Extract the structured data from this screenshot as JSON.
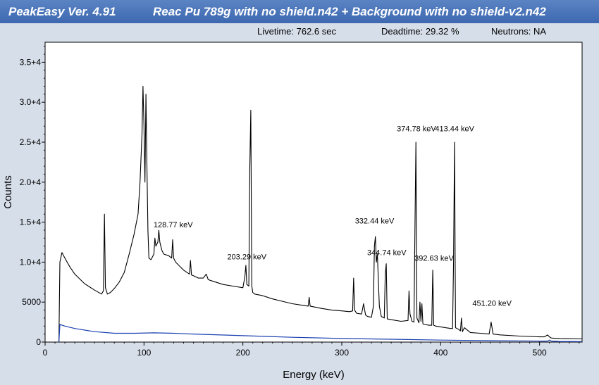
{
  "window": {
    "app_title": "PeakEasy Ver. 4.91",
    "file_title": "Reac Pu 789g with no shield.n42  +  Background with no shield-v2.n42"
  },
  "status": {
    "livetime": "Livetime: 762.6 sec",
    "deadtime": "Deadtime: 29.32 %",
    "neutrons": "Neutrons: NA"
  },
  "colors": {
    "plot_bg": "#ffffff",
    "spectrum": "#000000",
    "background_spectrum": "#1a3fb0",
    "window_bg": "#d6dee9",
    "titlebar": "#4a76ba"
  },
  "chart_data": {
    "type": "line",
    "title": "",
    "xlabel": "Energy (keV)",
    "ylabel": "Counts",
    "xlim": [
      0,
      543
    ],
    "ylim": [
      0,
      37500
    ],
    "x_ticks": [
      0,
      100,
      200,
      300,
      400,
      500
    ],
    "y_ticks": [
      {
        "value": 0,
        "label": "0"
      },
      {
        "value": 5000,
        "label": "5000"
      },
      {
        "value": 10000,
        "label": "1.0+4"
      },
      {
        "value": 15000,
        "label": "1.5+4"
      },
      {
        "value": 20000,
        "label": "2.0+4"
      },
      {
        "value": 25000,
        "label": "2.5+4"
      },
      {
        "value": 30000,
        "label": "3.0+4"
      },
      {
        "value": 35000,
        "label": "3.5+4"
      }
    ],
    "grid": false,
    "series": [
      {
        "role": "spectrum",
        "x": [
          14,
          15,
          17,
          20,
          25,
          30,
          40,
          50,
          57,
          59,
          60,
          61,
          63,
          66,
          70,
          75,
          80,
          85,
          90,
          94,
          96,
          98,
          99,
          100,
          101,
          102,
          103,
          104,
          105,
          107,
          110,
          111,
          112,
          114,
          115,
          116,
          118,
          120,
          125,
          128,
          129,
          130,
          132,
          140,
          146,
          147,
          148,
          150,
          155,
          160,
          163,
          165,
          170,
          180,
          190,
          200,
          202,
          203,
          204,
          206,
          207,
          208,
          209,
          210,
          212,
          220,
          230,
          240,
          250,
          260,
          266,
          267,
          268,
          280,
          290,
          300,
          308,
          311,
          312,
          313,
          315,
          320,
          322,
          324,
          326,
          330,
          332,
          333,
          334,
          335,
          336,
          338,
          340,
          343,
          344,
          345,
          346,
          350,
          360,
          367,
          368,
          369,
          371,
          373,
          374,
          375,
          376,
          378,
          379,
          380,
          381,
          382,
          383,
          384,
          388,
          391,
          392,
          393,
          395,
          400,
          410,
          412,
          413,
          414,
          415,
          418,
          420,
          421,
          422,
          424,
          430,
          440,
          449,
          451,
          453,
          460,
          480,
          500,
          505,
          508,
          510,
          512,
          520,
          543
        ],
        "y": [
          0,
          10000,
          11200,
          10500,
          9400,
          8500,
          7300,
          6500,
          6000,
          6400,
          16000,
          6800,
          6000,
          6200,
          6700,
          7500,
          8700,
          11000,
          13500,
          16000,
          20000,
          26000,
          32000,
          27000,
          20000,
          31000,
          22000,
          14000,
          10500,
          10300,
          11000,
          13000,
          12000,
          12500,
          14000,
          12500,
          11500,
          11000,
          10800,
          10500,
          12800,
          10500,
          10000,
          9000,
          8500,
          10200,
          8400,
          8300,
          8000,
          8000,
          8500,
          7800,
          7600,
          7200,
          7000,
          6800,
          8200,
          9600,
          7200,
          7000,
          22000,
          29000,
          7000,
          6200,
          6000,
          5800,
          5400,
          5100,
          4800,
          4600,
          4500,
          5600,
          4500,
          4200,
          4000,
          3900,
          3800,
          3900,
          8000,
          4000,
          3600,
          3500,
          4800,
          3400,
          3200,
          3100,
          4500,
          12000,
          13200,
          10000,
          11000,
          4500,
          3200,
          3000,
          8500,
          9800,
          2900,
          2800,
          2600,
          2700,
          6400,
          3500,
          2600,
          2500,
          14000,
          25000,
          3000,
          2400,
          5000,
          2600,
          4800,
          2300,
          2200,
          2200,
          2100,
          2100,
          9000,
          2100,
          2000,
          1900,
          1700,
          1700,
          10000,
          25000,
          1800,
          1600,
          1400,
          3000,
          1300,
          1800,
          1200,
          1100,
          1000,
          2500,
          1000,
          900,
          750,
          650,
          650,
          900,
          650,
          500,
          450,
          400
        ]
      },
      {
        "role": "background",
        "x": [
          14,
          15,
          20,
          30,
          50,
          70,
          90,
          110,
          130,
          150,
          200,
          250,
          300,
          350,
          400,
          450,
          500,
          508,
          510,
          512,
          520,
          543
        ],
        "y": [
          0,
          2200,
          2000,
          1700,
          1300,
          1100,
          1100,
          1150,
          1100,
          1000,
          800,
          600,
          450,
          350,
          250,
          180,
          120,
          120,
          250,
          120,
          80,
          60
        ]
      }
    ],
    "annotations": [
      {
        "text": "128.77 keV",
        "x": 128.77,
        "y": 14000
      },
      {
        "text": "203.29 keV",
        "x": 203.29,
        "y": 10000
      },
      {
        "text": "332.44 keV",
        "x": 332.44,
        "y": 14500
      },
      {
        "text": "344.74 keV",
        "x": 344.74,
        "y": 10500
      },
      {
        "text": "374.78 keV",
        "x": 374.78,
        "y": 26000
      },
      {
        "text": "413.44 keV",
        "x": 413.44,
        "y": 26000
      },
      {
        "text": "392.63 keV",
        "x": 392.63,
        "y": 9800
      },
      {
        "text": "451.20 keV",
        "x": 451.2,
        "y": 4200
      }
    ]
  }
}
